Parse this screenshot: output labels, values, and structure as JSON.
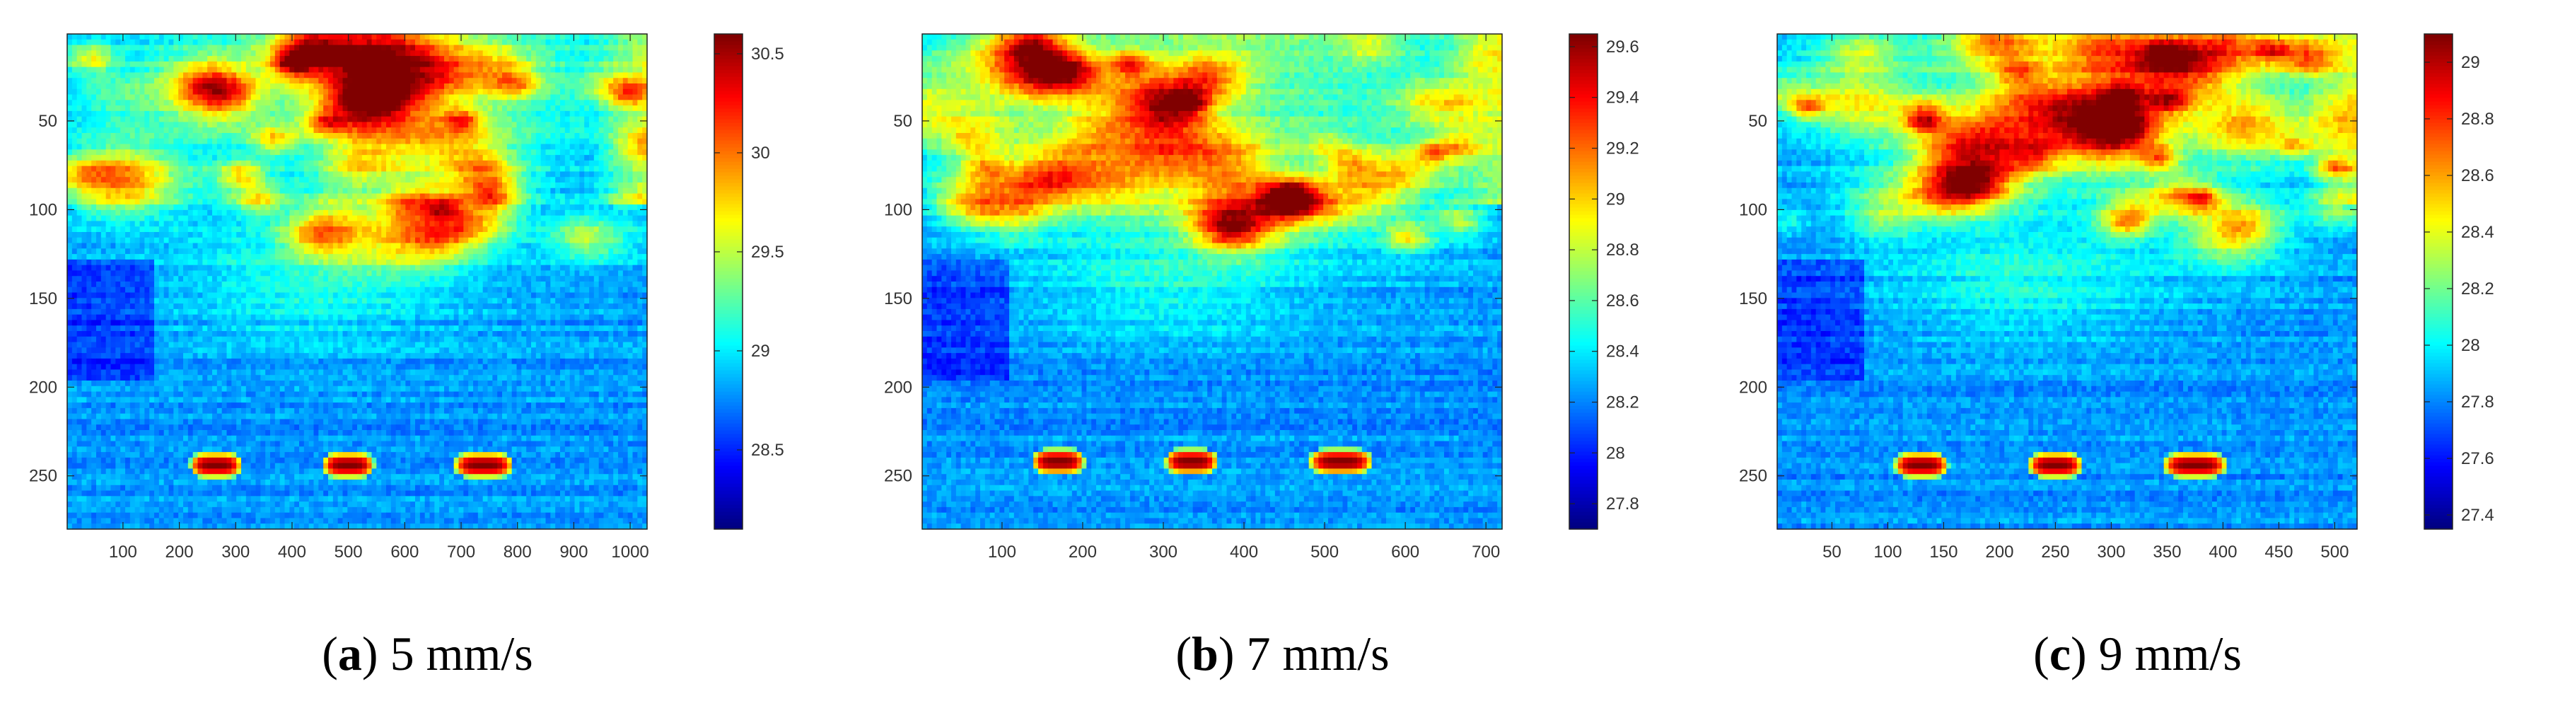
{
  "chart_data": [
    {
      "type": "heatmap",
      "caption_letter": "a",
      "caption_text": " 5 mm/s",
      "xticks": [
        100,
        200,
        300,
        400,
        500,
        600,
        700,
        800,
        900,
        1000
      ],
      "xlim": [
        1,
        1030
      ],
      "yticks": [
        50,
        100,
        150,
        200,
        250
      ],
      "ylim": [
        1,
        280
      ],
      "colorbar_ticks": [
        28.5,
        29,
        29.5,
        30,
        30.5
      ],
      "colorbar_tick_labels": [
        "28.5",
        "29",
        "29.5",
        "30",
        "30.5"
      ],
      "clim": [
        28.1,
        30.6
      ],
      "colormap": "jet",
      "hotspots": [
        {
          "x": 265,
          "y": 244,
          "half_width": 42
        },
        {
          "x": 500,
          "y": 244,
          "half_width": 42
        },
        {
          "x": 740,
          "y": 244,
          "half_width": 48
        }
      ]
    },
    {
      "type": "heatmap",
      "caption_letter": "b",
      "caption_text": " 7 mm/s",
      "xticks": [
        100,
        200,
        300,
        400,
        500,
        600,
        700
      ],
      "xlim": [
        1,
        720
      ],
      "yticks": [
        50,
        100,
        150,
        200,
        250
      ],
      "ylim": [
        1,
        280
      ],
      "colorbar_ticks": [
        27.8,
        28,
        28.2,
        28.4,
        28.6,
        28.8,
        29,
        29.2,
        29.4,
        29.6
      ],
      "colorbar_tick_labels": [
        "27.8",
        "28",
        "28.2",
        "28.4",
        "28.6",
        "28.8",
        "29",
        "29.2",
        "29.4",
        "29.6"
      ],
      "clim": [
        27.7,
        29.65
      ],
      "colormap": "jet",
      "hotspots": [
        {
          "x": 170,
          "y": 242,
          "half_width": 30
        },
        {
          "x": 335,
          "y": 242,
          "half_width": 30
        },
        {
          "x": 520,
          "y": 242,
          "half_width": 36
        }
      ]
    },
    {
      "type": "heatmap",
      "caption_letter": "c",
      "caption_text": " 9 mm/s",
      "xticks": [
        50,
        100,
        150,
        200,
        250,
        300,
        350,
        400,
        450,
        500
      ],
      "xlim": [
        1,
        520
      ],
      "yticks": [
        50,
        100,
        150,
        200,
        250
      ],
      "ylim": [
        1,
        280
      ],
      "colorbar_ticks": [
        27.4,
        27.6,
        27.8,
        28,
        28.2,
        28.4,
        28.6,
        28.8,
        29
      ],
      "colorbar_tick_labels": [
        "27.4",
        "27.6",
        "27.8",
        "28",
        "28.2",
        "28.4",
        "28.6",
        "28.8",
        "29"
      ],
      "clim": [
        27.35,
        29.1
      ],
      "colormap": "jet",
      "hotspots": [
        {
          "x": 130,
          "y": 244,
          "half_width": 22
        },
        {
          "x": 250,
          "y": 244,
          "half_width": 22
        },
        {
          "x": 375,
          "y": 244,
          "half_width": 26
        }
      ]
    }
  ]
}
